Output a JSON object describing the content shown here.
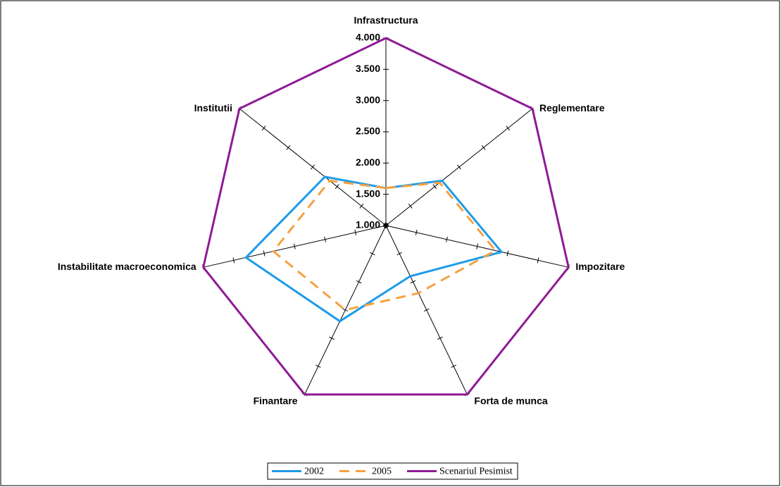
{
  "chart_data": {
    "type": "radar",
    "categories": [
      "Infrastructura",
      "Reglementare",
      "Impozitare",
      "Forta de munca",
      "Finantare",
      "Instabilitate macroeconomica",
      "Institutii"
    ],
    "series": [
      {
        "name": "2002",
        "color": "#1e9be9",
        "values": [
          1.6,
          2.15,
          2.9,
          1.9,
          2.7,
          3.3,
          2.25
        ]
      },
      {
        "name": "2005",
        "color": "#f5a142",
        "values": [
          1.6,
          2.1,
          2.8,
          2.2,
          2.5,
          2.85,
          2.15
        ]
      },
      {
        "name": "Scenariul Pesimist",
        "color": "#8e1a96",
        "values": [
          4,
          4,
          4,
          4,
          4,
          4,
          4
        ]
      }
    ],
    "ylim": [
      1,
      4
    ],
    "yticks": [
      {
        "value": 1,
        "label": "1.000"
      },
      {
        "value": 1.5,
        "label": "1.500"
      },
      {
        "value": 2,
        "label": "2.000"
      },
      {
        "value": 2.5,
        "label": "2.500"
      },
      {
        "value": 3,
        "label": "3.000"
      },
      {
        "value": 3.5,
        "label": "3.500"
      },
      {
        "value": 4,
        "label": "4.000"
      }
    ]
  }
}
